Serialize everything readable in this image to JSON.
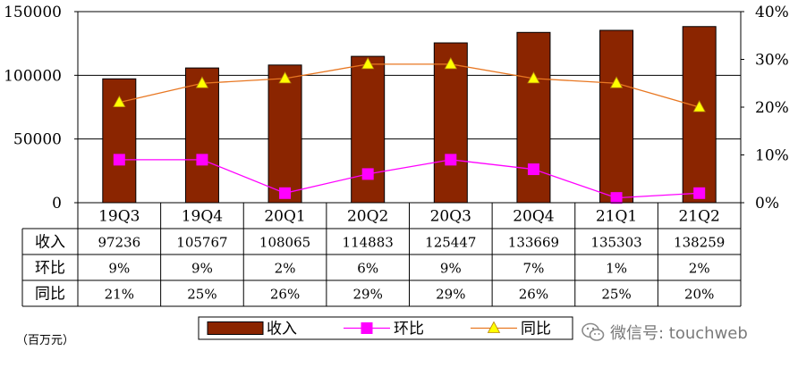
{
  "chart_data": {
    "type": "bar",
    "categories": [
      "19Q3",
      "19Q4",
      "20Q1",
      "20Q2",
      "20Q3",
      "20Q4",
      "21Q1",
      "21Q2"
    ],
    "series": [
      {
        "name": "收入",
        "type": "bar",
        "axis": "left",
        "color": "#8B2500",
        "values": [
          97236,
          105767,
          108065,
          114883,
          125447,
          133669,
          135303,
          138259
        ]
      },
      {
        "name": "环比",
        "type": "line",
        "axis": "right",
        "color": "#FF00FF",
        "marker": "square",
        "values": [
          9,
          9,
          2,
          6,
          9,
          7,
          1,
          2
        ]
      },
      {
        "name": "同比",
        "type": "line",
        "axis": "right",
        "color": "#E87722",
        "marker": "triangle",
        "values": [
          21,
          25,
          26,
          29,
          29,
          26,
          25,
          20
        ]
      }
    ],
    "ylim": [
      0,
      150000
    ],
    "yticks": [
      "0",
      "50000",
      "100000",
      "150000"
    ],
    "y2lim": [
      0,
      40
    ],
    "y2ticks": [
      "0%",
      "10%",
      "20%",
      "30%",
      "40%"
    ],
    "grid": true,
    "legend": "bottom-center",
    "table": {
      "rows": [
        {
          "label": "收入",
          "cells": [
            "97236",
            "105767",
            "108065",
            "114883",
            "125447",
            "133669",
            "135303",
            "138259"
          ]
        },
        {
          "label": "环比",
          "cells": [
            "9%",
            "9%",
            "2%",
            "6%",
            "9%",
            "7%",
            "1%",
            "2%"
          ]
        },
        {
          "label": "同比",
          "cells": [
            "21%",
            "25%",
            "26%",
            "29%",
            "29%",
            "26%",
            "25%",
            "20%"
          ]
        }
      ]
    }
  },
  "unit_label": "（百万元）",
  "watermark": {
    "icon": "wechat-icon",
    "text": "微信号: touchweb"
  }
}
